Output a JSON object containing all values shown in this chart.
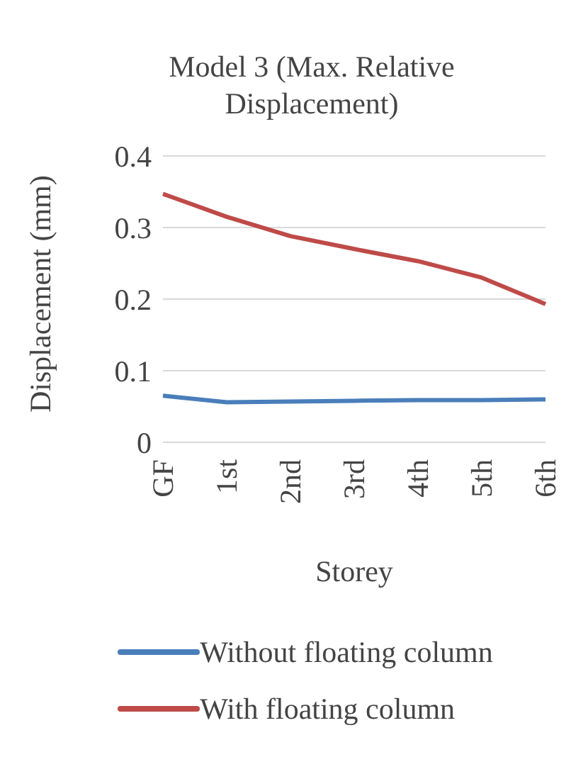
{
  "chart_data": {
    "type": "line",
    "title": "Model 3 (Max. Relative Displacement)",
    "xlabel": "Storey",
    "ylabel": "Displacement (mm)",
    "categories": [
      "GF",
      "1st",
      "2nd",
      "3rd",
      "4th",
      "5th",
      "6th"
    ],
    "series": [
      {
        "name": "Without floating column",
        "color": "#4a7ebb",
        "values": [
          0.065,
          0.056,
          0.057,
          0.058,
          0.059,
          0.059,
          0.06
        ]
      },
      {
        "name": "With floating column",
        "color": "#be4b48",
        "values": [
          0.347,
          0.315,
          0.288,
          0.27,
          0.253,
          0.23,
          0.193
        ]
      }
    ],
    "ylim": [
      0,
      0.4
    ],
    "yticks": [
      0,
      0.1,
      0.2,
      0.3,
      0.4
    ],
    "grid": "y",
    "legend": "bottom",
    "marker": "none",
    "line_style": "solid"
  }
}
